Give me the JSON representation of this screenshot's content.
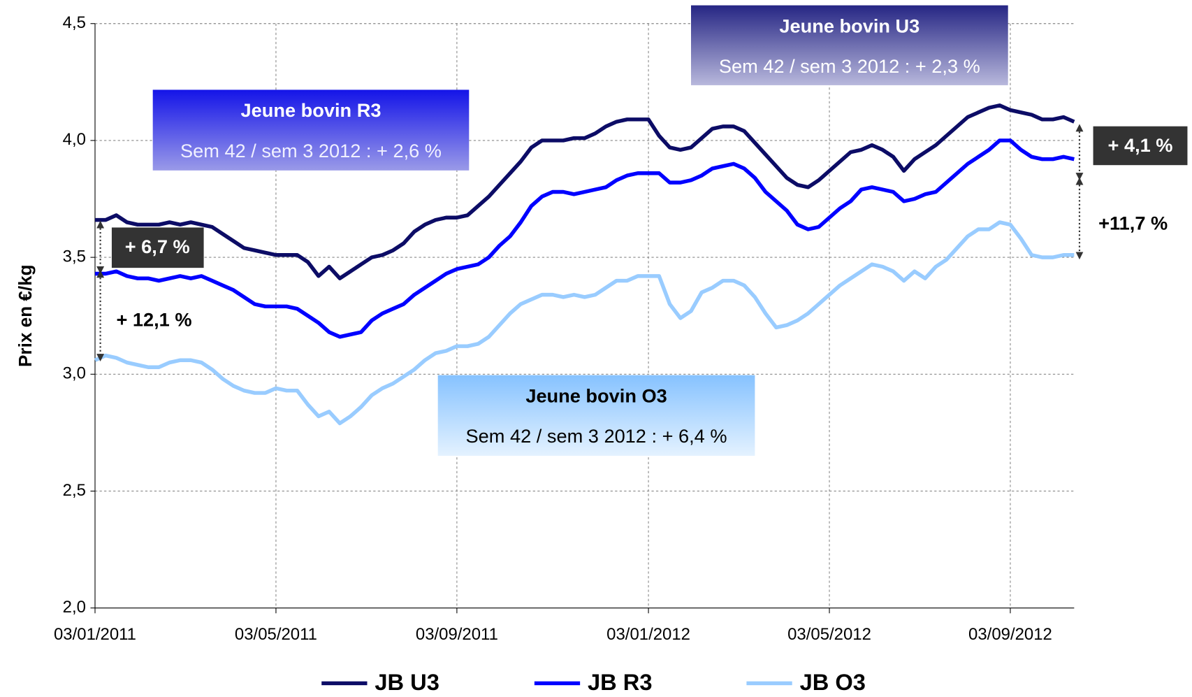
{
  "chart_data": {
    "type": "line",
    "ylabel": "Prix en €/kg",
    "ylim": [
      2,
      4.5
    ],
    "yticks": [
      {
        "value": 2,
        "label": "2,0"
      },
      {
        "value": 2.5,
        "label": "2,5"
      },
      {
        "value": 3,
        "label": "3,0"
      },
      {
        "value": 3.5,
        "label": "3,5"
      },
      {
        "value": 4,
        "label": "4,0"
      },
      {
        "value": 4.5,
        "label": "4,5"
      }
    ],
    "grid": true,
    "categories": [
      "03/01/2011",
      null,
      null,
      null,
      null,
      null,
      null,
      null,
      null,
      null,
      null,
      null,
      null,
      null,
      null,
      null,
      null,
      "03/05/2011",
      null,
      null,
      null,
      null,
      null,
      null,
      null,
      null,
      null,
      null,
      null,
      null,
      null,
      null,
      null,
      null,
      "03/09/2011",
      null,
      null,
      null,
      null,
      null,
      null,
      null,
      null,
      null,
      null,
      null,
      null,
      null,
      null,
      null,
      null,
      null,
      "03/01/2012",
      null,
      null,
      null,
      null,
      null,
      null,
      null,
      null,
      null,
      null,
      null,
      null,
      null,
      null,
      null,
      null,
      "03/05/2012",
      null,
      null,
      null,
      null,
      null,
      null,
      null,
      null,
      null,
      null,
      null,
      null,
      null,
      null,
      null,
      null,
      "03/09/2012",
      null,
      null,
      null,
      null,
      null,
      null
    ],
    "series": [
      {
        "name": "JB U3",
        "color": "#0c0c66",
        "values": [
          3.66,
          3.66,
          3.68,
          3.65,
          3.64,
          3.64,
          3.64,
          3.65,
          3.64,
          3.65,
          3.64,
          3.63,
          3.6,
          3.57,
          3.54,
          3.53,
          3.52,
          3.51,
          3.51,
          3.51,
          3.48,
          3.42,
          3.46,
          3.41,
          3.44,
          3.47,
          3.5,
          3.51,
          3.53,
          3.56,
          3.61,
          3.64,
          3.66,
          3.67,
          3.67,
          3.68,
          3.72,
          3.76,
          3.81,
          3.86,
          3.91,
          3.97,
          4.0,
          4.0,
          4.0,
          4.01,
          4.01,
          4.03,
          4.06,
          4.08,
          4.09,
          4.09,
          4.09,
          4.02,
          3.97,
          3.96,
          3.97,
          4.01,
          4.05,
          4.06,
          4.06,
          4.04,
          3.99,
          3.94,
          3.89,
          3.84,
          3.81,
          3.8,
          3.83,
          3.87,
          3.91,
          3.95,
          3.96,
          3.98,
          3.96,
          3.93,
          3.87,
          3.92,
          3.95,
          3.98,
          4.02,
          4.06,
          4.1,
          4.12,
          4.14,
          4.15,
          4.13,
          4.12,
          4.11,
          4.09,
          4.09,
          4.1,
          4.08
        ]
      },
      {
        "name": "JB R3",
        "color": "#0000ff",
        "values": [
          3.43,
          3.43,
          3.44,
          3.42,
          3.41,
          3.41,
          3.4,
          3.41,
          3.42,
          3.41,
          3.42,
          3.4,
          3.38,
          3.36,
          3.33,
          3.3,
          3.29,
          3.29,
          3.29,
          3.28,
          3.25,
          3.22,
          3.18,
          3.16,
          3.17,
          3.18,
          3.23,
          3.26,
          3.28,
          3.3,
          3.34,
          3.37,
          3.4,
          3.43,
          3.45,
          3.46,
          3.47,
          3.5,
          3.55,
          3.59,
          3.65,
          3.72,
          3.76,
          3.78,
          3.78,
          3.77,
          3.78,
          3.79,
          3.8,
          3.83,
          3.85,
          3.86,
          3.86,
          3.86,
          3.82,
          3.82,
          3.83,
          3.85,
          3.88,
          3.89,
          3.9,
          3.88,
          3.84,
          3.78,
          3.74,
          3.7,
          3.64,
          3.62,
          3.63,
          3.67,
          3.71,
          3.74,
          3.79,
          3.8,
          3.79,
          3.78,
          3.74,
          3.75,
          3.77,
          3.78,
          3.82,
          3.86,
          3.9,
          3.93,
          3.96,
          4.0,
          4.0,
          3.96,
          3.93,
          3.92,
          3.92,
          3.93,
          3.92
        ]
      },
      {
        "name": "JB O3",
        "color": "#99ccff",
        "values": [
          3.06,
          3.08,
          3.07,
          3.05,
          3.04,
          3.03,
          3.03,
          3.05,
          3.06,
          3.06,
          3.05,
          3.02,
          2.98,
          2.95,
          2.93,
          2.92,
          2.92,
          2.94,
          2.93,
          2.93,
          2.87,
          2.82,
          2.84,
          2.79,
          2.82,
          2.86,
          2.91,
          2.94,
          2.96,
          2.99,
          3.02,
          3.06,
          3.09,
          3.1,
          3.12,
          3.12,
          3.13,
          3.16,
          3.21,
          3.26,
          3.3,
          3.32,
          3.34,
          3.34,
          3.33,
          3.34,
          3.33,
          3.34,
          3.37,
          3.4,
          3.4,
          3.42,
          3.42,
          3.42,
          3.3,
          3.24,
          3.27,
          3.35,
          3.37,
          3.4,
          3.4,
          3.38,
          3.33,
          3.26,
          3.2,
          3.21,
          3.23,
          3.26,
          3.3,
          3.34,
          3.38,
          3.41,
          3.44,
          3.47,
          3.46,
          3.44,
          3.4,
          3.44,
          3.41,
          3.46,
          3.49,
          3.54,
          3.59,
          3.62,
          3.62,
          3.65,
          3.64,
          3.58,
          3.51,
          3.5,
          3.5,
          3.51,
          3.51
        ]
      }
    ],
    "annotations": [
      {
        "title": "Jeune bovin R3",
        "text": "Sem 42 / sem 3 2012 : + 2,6 %"
      },
      {
        "title": "Jeune bovin U3",
        "text": "Sem 42 / sem 3 2012 : + 2,3 %"
      },
      {
        "title": "Jeune bovin O3",
        "text": "Sem 42 / sem 3 2012 : + 6,4 %"
      }
    ],
    "spread_labels": [
      "+ 6,7 %",
      "+ 12,1 %",
      "+ 4,1 %",
      "+11,7 %"
    ]
  }
}
